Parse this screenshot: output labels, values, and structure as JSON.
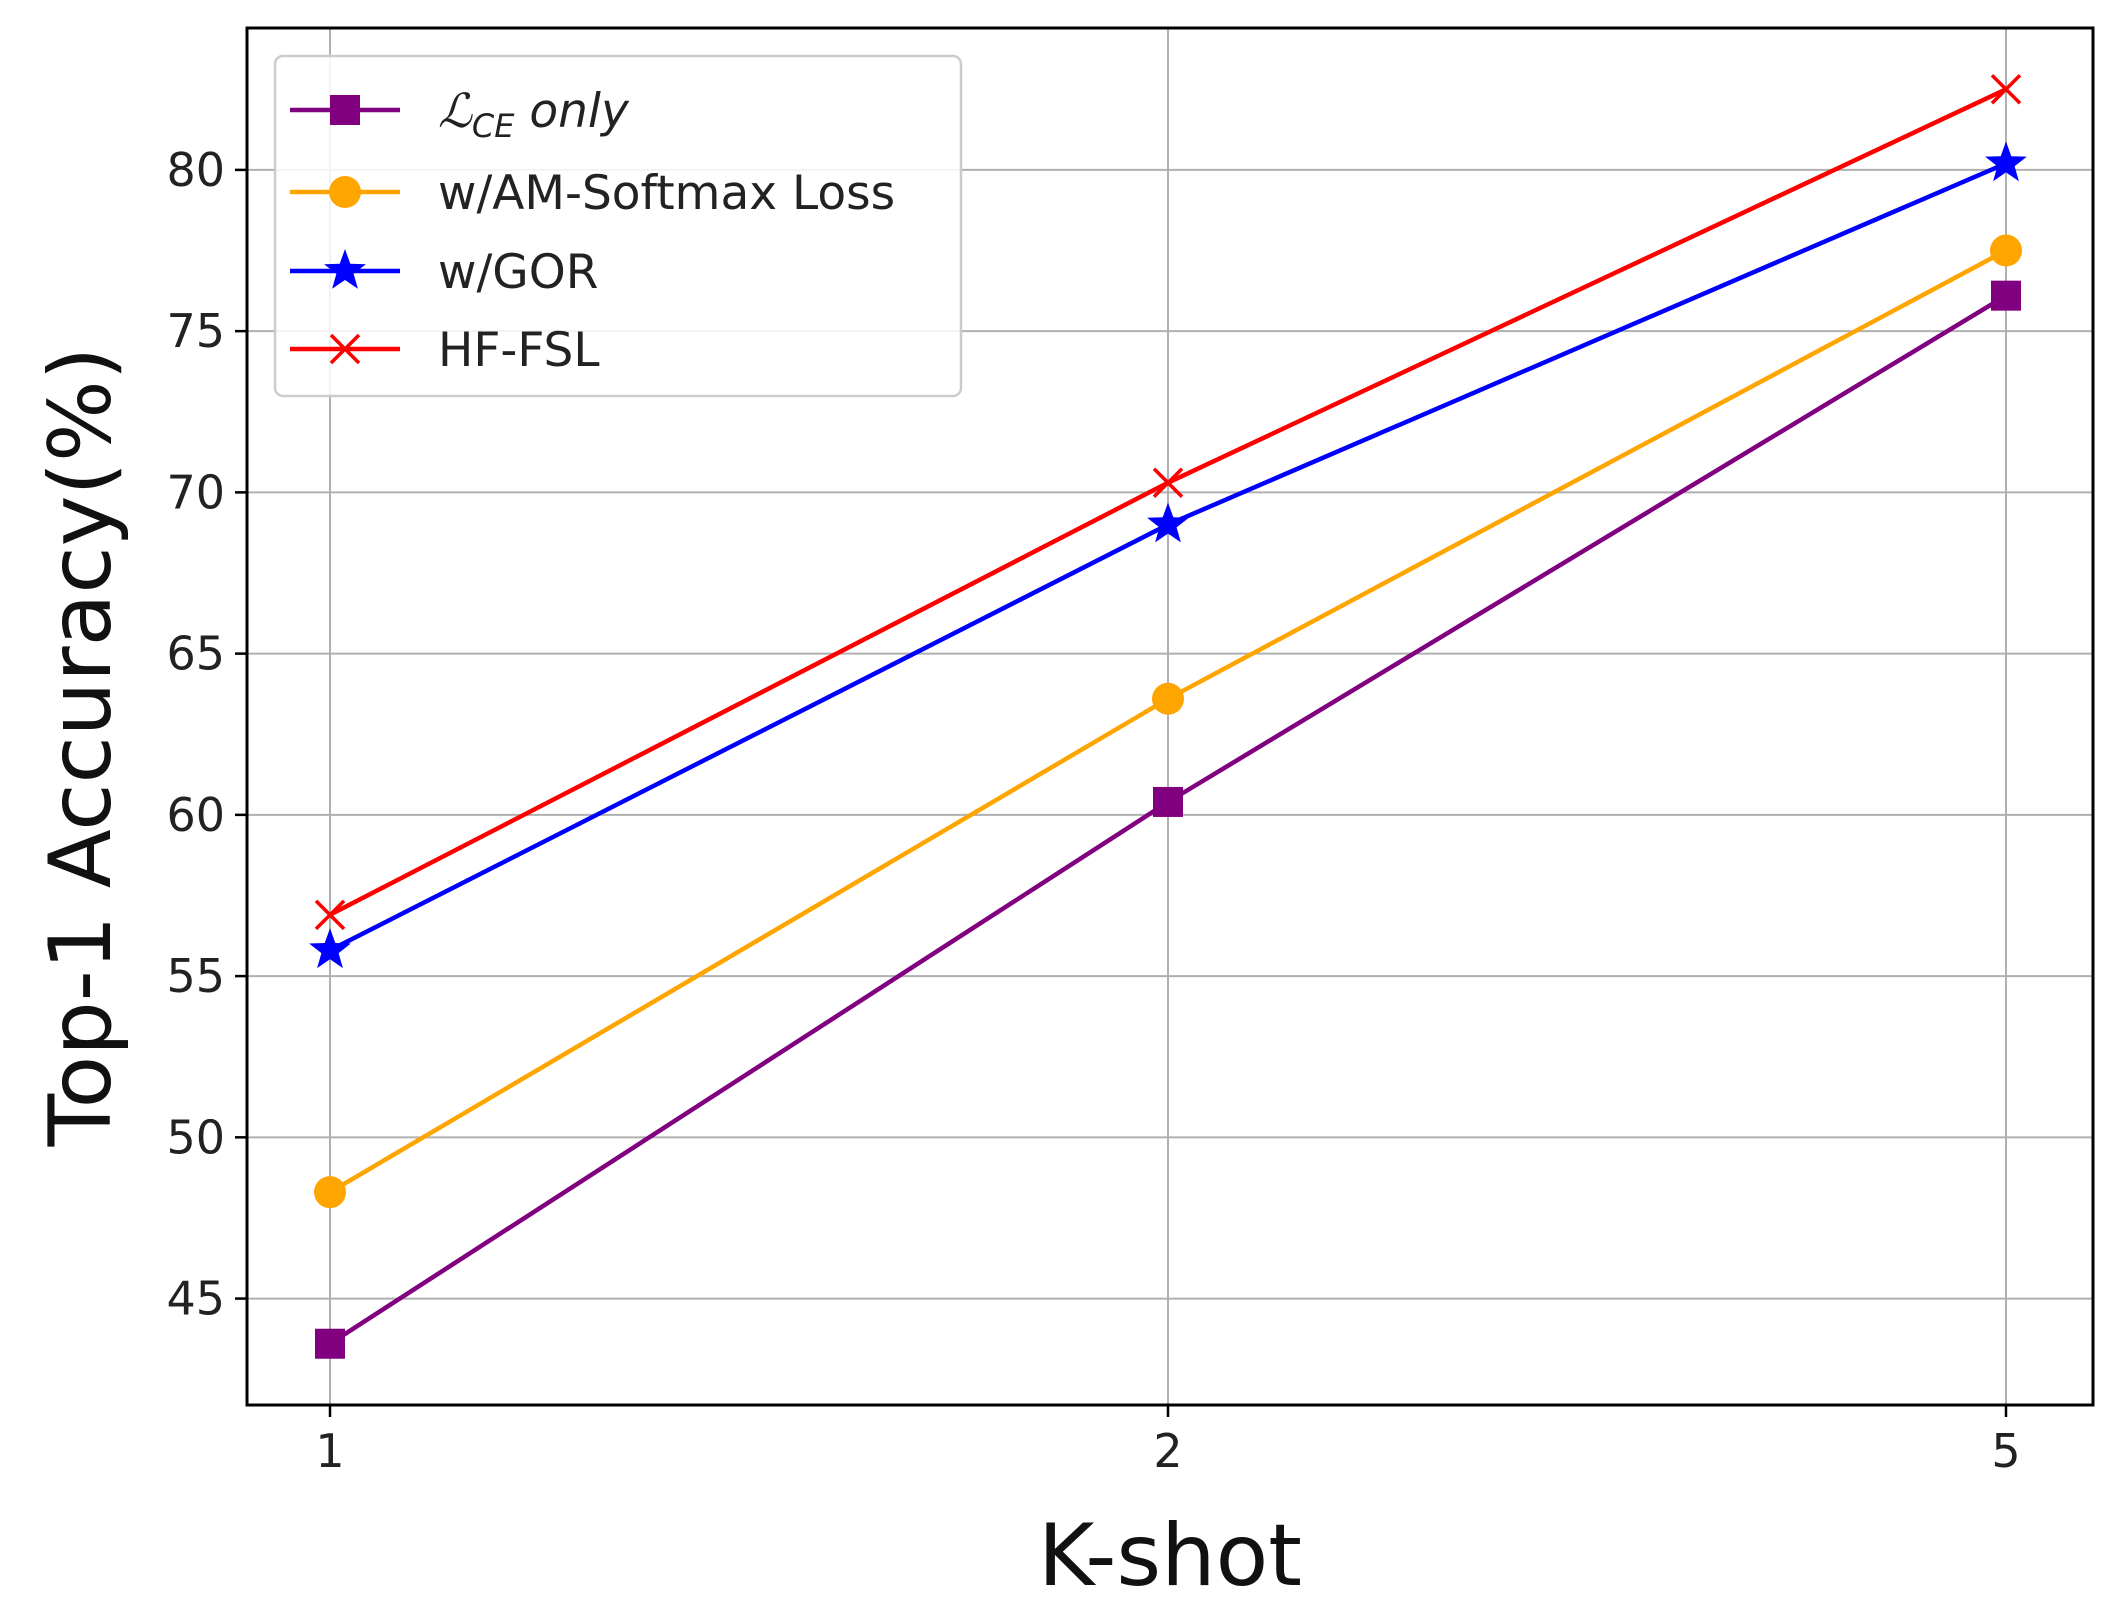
{
  "chart_data": {
    "type": "line",
    "xlabel": "K-shot",
    "ylabel": "Top-1 Accuracy(%)",
    "categories": [
      "1",
      "2",
      "5"
    ],
    "ylim": [
      41.7,
      84.4
    ],
    "yticks": [
      45,
      50,
      55,
      60,
      65,
      70,
      75,
      80
    ],
    "grid": true,
    "legend_position": "top-left",
    "series": [
      {
        "name": "ℒCE only",
        "name_main": "ℒ",
        "name_sub": "CE",
        "name_rest": " only",
        "color": "#800080",
        "marker": "square",
        "values": [
          43.6,
          60.4,
          76.1
        ]
      },
      {
        "name": "w/AM-Softmax Loss",
        "color": "#FFA500",
        "marker": "circle",
        "values": [
          48.3,
          63.6,
          77.5
        ]
      },
      {
        "name": "w/GOR",
        "color": "#0000FF",
        "marker": "star",
        "values": [
          55.8,
          69.0,
          80.2
        ]
      },
      {
        "name": "HF-FSL",
        "color": "#FF0000",
        "marker": "x",
        "values": [
          56.9,
          70.3,
          82.5
        ]
      }
    ]
  }
}
